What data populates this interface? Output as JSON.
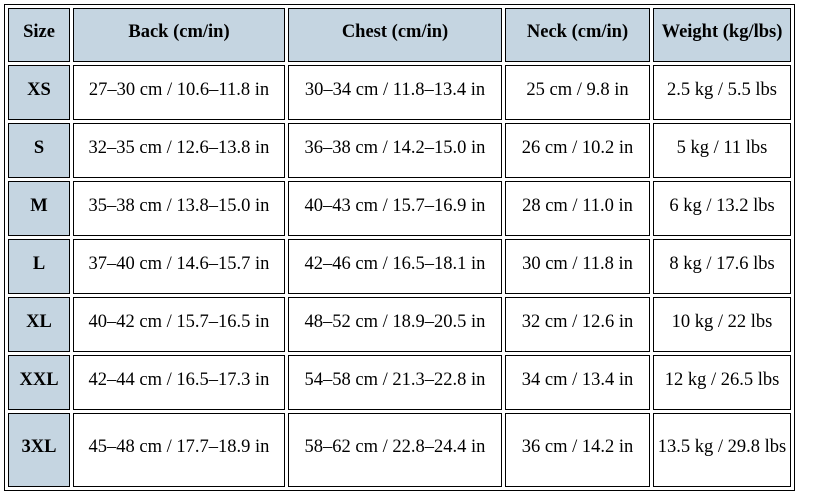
{
  "headers": [
    "Size",
    "Back (cm/in)",
    "Chest (cm/in)",
    "Neck (cm/in)",
    "Weight (kg/lbs)"
  ],
  "rows": [
    [
      "XS",
      "27–30 cm / 10.6–11.8 in",
      "30–34 cm / 11.8–13.4 in",
      "25 cm / 9.8 in",
      "2.5 kg / 5.5 lbs"
    ],
    [
      "S",
      "32–35 cm / 12.6–13.8 in",
      "36–38 cm / 14.2–15.0 in",
      "26 cm / 10.2 in",
      "5 kg / 11 lbs"
    ],
    [
      "M",
      "35–38 cm / 13.8–15.0 in",
      "40–43 cm / 15.7–16.9 in",
      "28 cm / 11.0 in",
      "6 kg / 13.2 lbs"
    ],
    [
      "L",
      "37–40 cm / 14.6–15.7 in",
      "42–46 cm / 16.5–18.1 in",
      "30 cm / 11.8 in",
      "8 kg / 17.6 lbs"
    ],
    [
      "XL",
      "40–42 cm / 15.7–16.5 in",
      "48–52 cm / 18.9–20.5 in",
      "32 cm / 12.6 in",
      "10 kg / 22 lbs"
    ],
    [
      "XXL",
      "42–44 cm / 16.5–17.3 in",
      "54–58 cm / 21.3–22.8 in",
      "34 cm / 13.4 in",
      "12 kg / 26.5 lbs"
    ],
    [
      "3XL",
      "45–48 cm / 17.7–18.9 in",
      "58–62 cm / 22.8–24.4 in",
      "36 cm / 14.2 in",
      "13.5 kg / 29.8 lbs"
    ]
  ],
  "colors": {
    "header_bg": "#c5d5e1",
    "border": "#000000"
  }
}
